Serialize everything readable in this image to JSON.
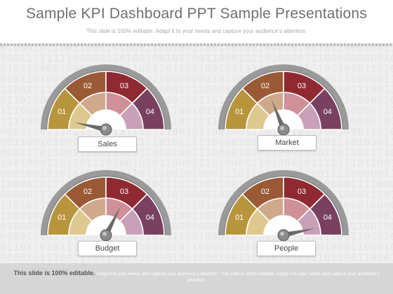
{
  "title": "Sample KPI Dashboard PPT Sample Presentations",
  "subtitle": "This slide is 100% editable. Adapt it to your needs and capture your audience's attention.",
  "footer": {
    "strong": "This slide is 100% editable.",
    "text": "Adapt it to your needs and capture your audience's attention. This slide is 100% editable. Adapt it to your needs and capture your audience's attention."
  },
  "segment_labels": [
    "01",
    "02",
    "03",
    "04"
  ],
  "colors": {
    "segments": [
      "#b8953c",
      "#9a5a35",
      "#8f2a32",
      "#7a4060"
    ],
    "inner": [
      "#ddc890",
      "#cfa98c",
      "#cf9098",
      "#c8a0b8"
    ],
    "rim": "#9a9a9a"
  },
  "gauges": [
    {
      "id": "sales",
      "label": "Sales",
      "needle": 0.07
    },
    {
      "id": "market",
      "label": "Market",
      "needle": 0.38
    },
    {
      "id": "budget",
      "label": "Budget",
      "needle": 0.65
    },
    {
      "id": "people",
      "label": "People",
      "needle": 0.93
    }
  ]
}
